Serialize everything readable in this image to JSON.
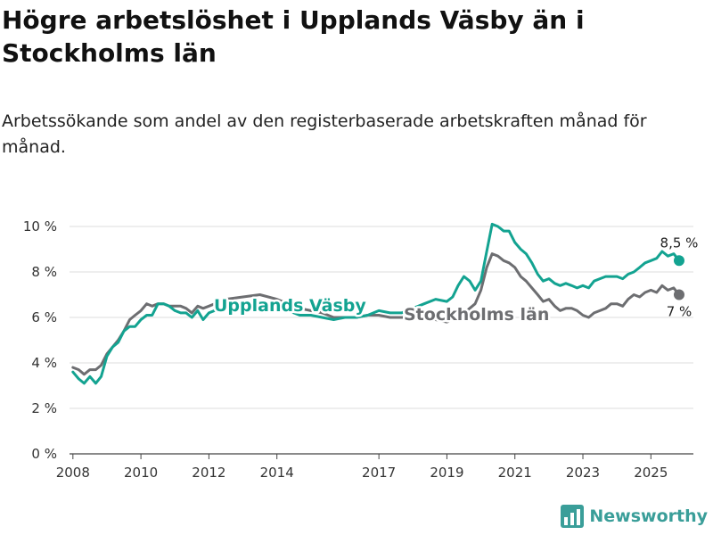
{
  "title": "Högre arbetslöshet i Upplands Väsby än i Stockholms län",
  "subtitle": "Arbetssökande som andel av den registerbaserade arbetskraften månad för månad.",
  "logo_text": "Newsworthy",
  "colors": {
    "upplands": "#13a391",
    "stockholm": "#6d6e71",
    "grid": "#dddddd",
    "logo": "#3a9e99"
  },
  "chart_data": {
    "type": "line",
    "title": "Högre arbetslöshet i Upplands Väsby än i Stockholms län",
    "xlabel": "",
    "ylabel": "",
    "xlim": [
      2007.9,
      2026.25
    ],
    "ylim": [
      0,
      10
    ],
    "x_ticks": [
      2008,
      2010,
      2012,
      2014,
      2017,
      2019,
      2021,
      2023,
      2025
    ],
    "x_tick_labels": [
      "2008",
      "2010",
      "2012",
      "2014",
      "2017",
      "2019",
      "2021",
      "2023",
      "2025"
    ],
    "y_ticks": [
      0,
      2,
      4,
      6,
      8,
      10
    ],
    "y_tick_labels": [
      "0 %",
      "2 %",
      "4 %",
      "6 %",
      "8 %",
      "10 %"
    ],
    "grid": true,
    "series": [
      {
        "name": "Upplands Väsby",
        "color": "#13a391",
        "end_label": "8,5 %",
        "points": [
          [
            2008.0,
            3.6
          ],
          [
            2008.17,
            3.3
          ],
          [
            2008.33,
            3.1
          ],
          [
            2008.5,
            3.4
          ],
          [
            2008.67,
            3.1
          ],
          [
            2008.83,
            3.4
          ],
          [
            2009.0,
            4.3
          ],
          [
            2009.17,
            4.7
          ],
          [
            2009.33,
            4.9
          ],
          [
            2009.5,
            5.4
          ],
          [
            2009.67,
            5.6
          ],
          [
            2009.83,
            5.6
          ],
          [
            2010.0,
            5.9
          ],
          [
            2010.17,
            6.1
          ],
          [
            2010.33,
            6.1
          ],
          [
            2010.5,
            6.6
          ],
          [
            2010.67,
            6.6
          ],
          [
            2010.83,
            6.5
          ],
          [
            2011.0,
            6.3
          ],
          [
            2011.17,
            6.2
          ],
          [
            2011.33,
            6.2
          ],
          [
            2011.5,
            6.0
          ],
          [
            2011.67,
            6.3
          ],
          [
            2011.83,
            5.9
          ],
          [
            2012.0,
            6.2
          ],
          [
            2012.5,
            6.5
          ],
          [
            2013.0,
            6.6
          ],
          [
            2013.5,
            6.7
          ],
          [
            2014.0,
            6.5
          ],
          [
            2014.33,
            6.3
          ],
          [
            2014.67,
            6.1
          ],
          [
            2015.0,
            6.1
          ],
          [
            2015.33,
            6.0
          ],
          [
            2015.67,
            5.9
          ],
          [
            2016.0,
            6.0
          ],
          [
            2016.33,
            6.0
          ],
          [
            2016.67,
            6.1
          ],
          [
            2017.0,
            6.3
          ],
          [
            2017.33,
            6.2
          ],
          [
            2017.67,
            6.2
          ],
          [
            2018.0,
            6.4
          ],
          [
            2018.33,
            6.6
          ],
          [
            2018.67,
            6.8
          ],
          [
            2019.0,
            6.7
          ],
          [
            2019.17,
            6.9
          ],
          [
            2019.33,
            7.4
          ],
          [
            2019.5,
            7.8
          ],
          [
            2019.67,
            7.6
          ],
          [
            2019.83,
            7.2
          ],
          [
            2020.0,
            7.6
          ],
          [
            2020.17,
            8.9
          ],
          [
            2020.33,
            10.1
          ],
          [
            2020.5,
            10.0
          ],
          [
            2020.67,
            9.8
          ],
          [
            2020.83,
            9.8
          ],
          [
            2021.0,
            9.3
          ],
          [
            2021.17,
            9.0
          ],
          [
            2021.33,
            8.8
          ],
          [
            2021.5,
            8.4
          ],
          [
            2021.67,
            7.9
          ],
          [
            2021.83,
            7.6
          ],
          [
            2022.0,
            7.7
          ],
          [
            2022.17,
            7.5
          ],
          [
            2022.33,
            7.4
          ],
          [
            2022.5,
            7.5
          ],
          [
            2022.67,
            7.4
          ],
          [
            2022.83,
            7.3
          ],
          [
            2023.0,
            7.4
          ],
          [
            2023.17,
            7.3
          ],
          [
            2023.33,
            7.6
          ],
          [
            2023.5,
            7.7
          ],
          [
            2023.67,
            7.8
          ],
          [
            2023.83,
            7.8
          ],
          [
            2024.0,
            7.8
          ],
          [
            2024.17,
            7.7
          ],
          [
            2024.33,
            7.9
          ],
          [
            2024.5,
            8.0
          ],
          [
            2024.67,
            8.2
          ],
          [
            2024.83,
            8.4
          ],
          [
            2025.0,
            8.5
          ],
          [
            2025.17,
            8.6
          ],
          [
            2025.33,
            8.9
          ],
          [
            2025.5,
            8.7
          ],
          [
            2025.67,
            8.8
          ],
          [
            2025.83,
            8.5
          ]
        ]
      },
      {
        "name": "Stockholms län",
        "color": "#6d6e71",
        "end_label": "7 %",
        "points": [
          [
            2008.0,
            3.8
          ],
          [
            2008.17,
            3.7
          ],
          [
            2008.33,
            3.5
          ],
          [
            2008.5,
            3.7
          ],
          [
            2008.67,
            3.7
          ],
          [
            2008.83,
            3.9
          ],
          [
            2009.0,
            4.4
          ],
          [
            2009.17,
            4.7
          ],
          [
            2009.33,
            5.0
          ],
          [
            2009.5,
            5.4
          ],
          [
            2009.67,
            5.9
          ],
          [
            2009.83,
            6.1
          ],
          [
            2010.0,
            6.3
          ],
          [
            2010.17,
            6.6
          ],
          [
            2010.33,
            6.5
          ],
          [
            2010.5,
            6.6
          ],
          [
            2010.67,
            6.6
          ],
          [
            2010.83,
            6.5
          ],
          [
            2011.0,
            6.5
          ],
          [
            2011.17,
            6.5
          ],
          [
            2011.33,
            6.4
          ],
          [
            2011.5,
            6.2
          ],
          [
            2011.67,
            6.5
          ],
          [
            2011.83,
            6.4
          ],
          [
            2012.0,
            6.5
          ],
          [
            2012.5,
            6.8
          ],
          [
            2013.0,
            6.9
          ],
          [
            2013.5,
            7.0
          ],
          [
            2014.0,
            6.8
          ],
          [
            2014.33,
            6.6
          ],
          [
            2014.67,
            6.4
          ],
          [
            2015.0,
            6.3
          ],
          [
            2015.33,
            6.2
          ],
          [
            2015.67,
            6.0
          ],
          [
            2016.0,
            6.0
          ],
          [
            2016.33,
            6.0
          ],
          [
            2016.67,
            6.1
          ],
          [
            2017.0,
            6.1
          ],
          [
            2017.33,
            6.0
          ],
          [
            2017.67,
            6.0
          ],
          [
            2018.0,
            6.0
          ],
          [
            2018.33,
            5.9
          ],
          [
            2018.67,
            5.9
          ],
          [
            2019.0,
            5.8
          ],
          [
            2019.33,
            6.0
          ],
          [
            2019.67,
            6.4
          ],
          [
            2019.83,
            6.6
          ],
          [
            2020.0,
            7.2
          ],
          [
            2020.17,
            8.2
          ],
          [
            2020.33,
            8.8
          ],
          [
            2020.5,
            8.7
          ],
          [
            2020.67,
            8.5
          ],
          [
            2020.83,
            8.4
          ],
          [
            2021.0,
            8.2
          ],
          [
            2021.17,
            7.8
          ],
          [
            2021.33,
            7.6
          ],
          [
            2021.5,
            7.3
          ],
          [
            2021.67,
            7.0
          ],
          [
            2021.83,
            6.7
          ],
          [
            2022.0,
            6.8
          ],
          [
            2022.17,
            6.5
          ],
          [
            2022.33,
            6.3
          ],
          [
            2022.5,
            6.4
          ],
          [
            2022.67,
            6.4
          ],
          [
            2022.83,
            6.3
          ],
          [
            2023.0,
            6.1
          ],
          [
            2023.17,
            6.0
          ],
          [
            2023.33,
            6.2
          ],
          [
            2023.5,
            6.3
          ],
          [
            2023.67,
            6.4
          ],
          [
            2023.83,
            6.6
          ],
          [
            2024.0,
            6.6
          ],
          [
            2024.17,
            6.5
          ],
          [
            2024.33,
            6.8
          ],
          [
            2024.5,
            7.0
          ],
          [
            2024.67,
            6.9
          ],
          [
            2024.83,
            7.1
          ],
          [
            2025.0,
            7.2
          ],
          [
            2025.17,
            7.1
          ],
          [
            2025.33,
            7.4
          ],
          [
            2025.5,
            7.2
          ],
          [
            2025.67,
            7.3
          ],
          [
            2025.83,
            7.0
          ]
        ]
      }
    ]
  }
}
